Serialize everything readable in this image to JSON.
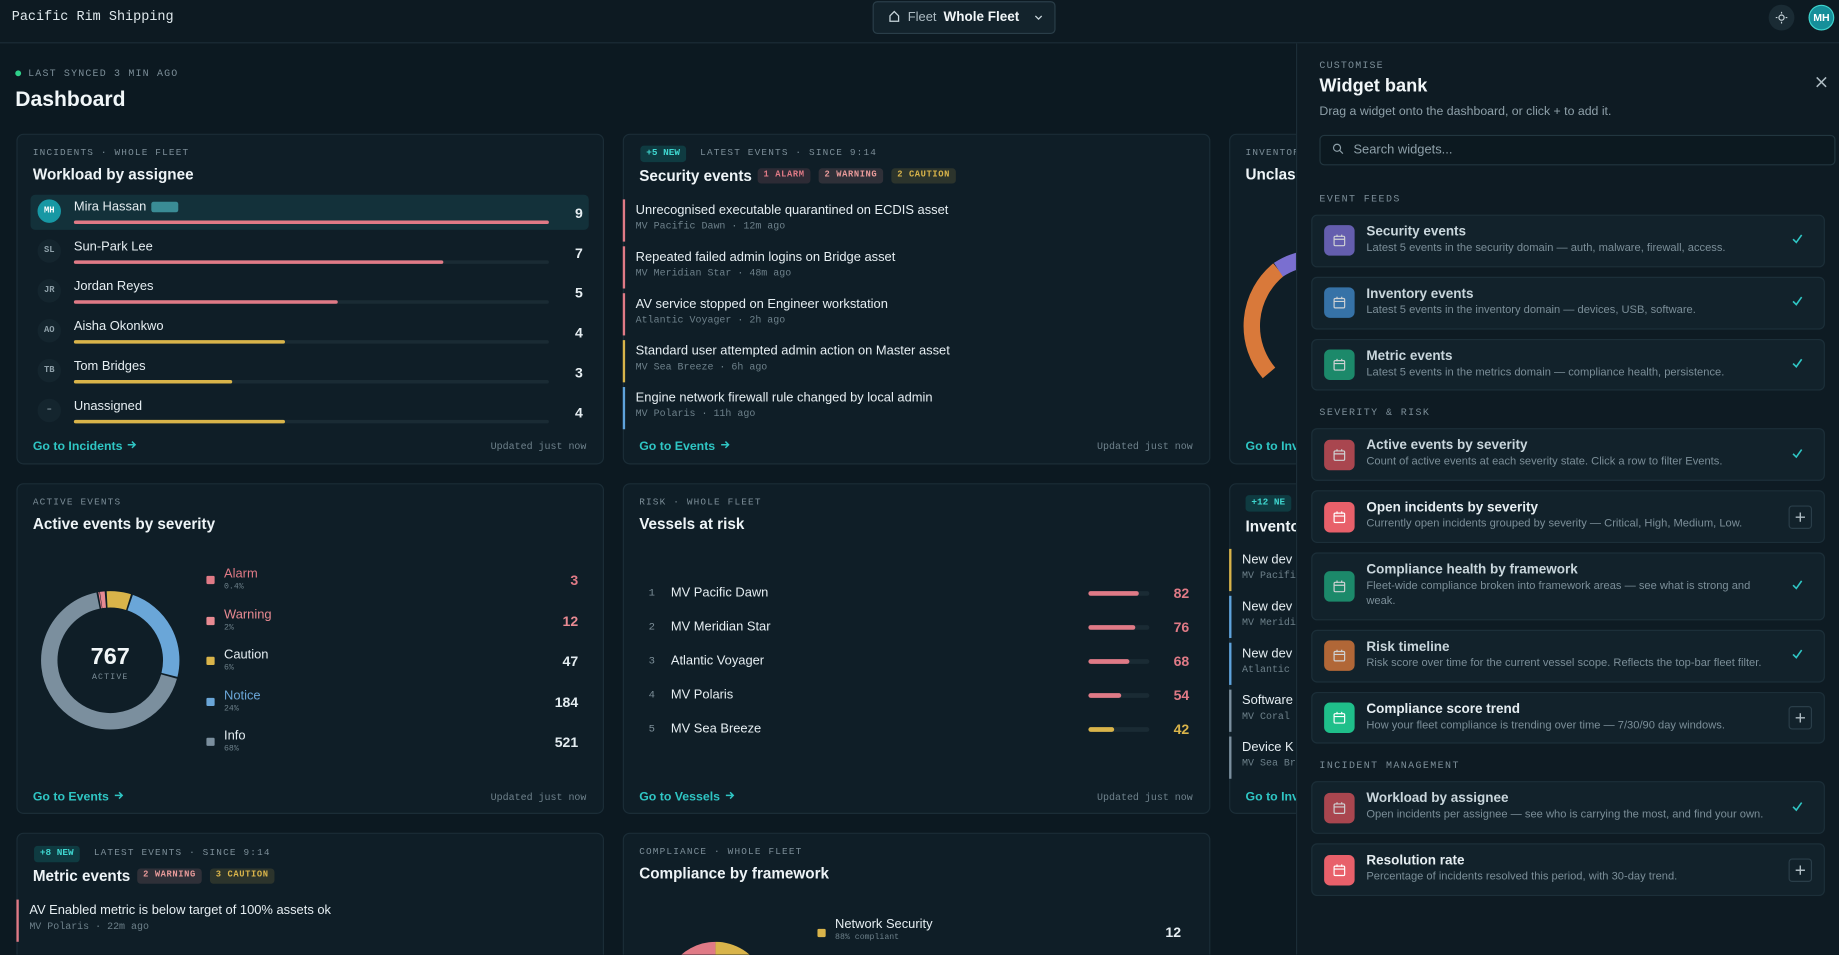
{
  "topbar": {
    "brand": "Pacific Rim Shipping",
    "fleet_label": "Fleet",
    "fleet_value": "Whole Fleet",
    "avatar": "MH"
  },
  "header": {
    "sync": "LAST SYNCED 3 MIN AGO",
    "title": "Dashboard"
  },
  "workload": {
    "eyebrow": "INCIDENTS · WHOLE FLEET",
    "title": "Workload by assignee",
    "rows": [
      {
        "initials": "MH",
        "name": "Mira Hassan",
        "count": 9,
        "color": "#e07a86"
      },
      {
        "initials": "SL",
        "name": "Sun-Park Lee",
        "count": 7,
        "color": "#e07a86"
      },
      {
        "initials": "JR",
        "name": "Jordan Reyes",
        "count": 5,
        "color": "#e07a86"
      },
      {
        "initials": "AO",
        "name": "Aisha Okonkwo",
        "count": 4,
        "color": "#d9b44a"
      },
      {
        "initials": "TB",
        "name": "Tom Bridges",
        "count": 3,
        "color": "#d9b44a"
      },
      {
        "initials": "–",
        "name": "Unassigned",
        "count": 4,
        "color": "#d9b44a"
      }
    ],
    "link": "Go to Incidents",
    "updated": "Updated just now"
  },
  "security": {
    "badge": "+5 NEW",
    "eyebrow": "LATEST EVENTS · SINCE 9:14",
    "title": "Security events",
    "tags": [
      {
        "text": "1 ALARM",
        "color": "#e07a86"
      },
      {
        "text": "2 WARNING",
        "color": "#e89a9a"
      },
      {
        "text": "2 CAUTION",
        "color": "#d9b44a"
      }
    ],
    "events": [
      {
        "title": "Unrecognised executable quarantined on ECDIS asset",
        "meta": "MV Pacific Dawn · 12m ago",
        "color": "#e07a86"
      },
      {
        "title": "Repeated failed admin logins on Bridge asset",
        "meta": "MV Meridian Star · 48m ago",
        "color": "#e07a86"
      },
      {
        "title": "AV service stopped on Engineer workstation",
        "meta": "Atlantic Voyager · 2h ago",
        "color": "#e07a86"
      },
      {
        "title": "Standard user attempted admin action on Master asset",
        "meta": "MV Sea Breeze · 6h ago",
        "color": "#d9b44a"
      },
      {
        "title": "Engine network firewall rule changed by local admin",
        "meta": "MV Polaris · 11h ago",
        "color": "#5fa3dc"
      }
    ],
    "link": "Go to Events",
    "updated": "Updated just now"
  },
  "inventory_peek": {
    "eyebrow": "INVENTOR",
    "title": "Unclass",
    "link": "Go to Inv"
  },
  "severity": {
    "eyebrow": "ACTIVE EVENTS",
    "title": "Active events by severity",
    "total": 767,
    "total_label": "ACTIVE",
    "items": [
      {
        "name": "Alarm",
        "share": "0.4%",
        "value": 3,
        "color": "#e07a86",
        "text_color": "#e07a86"
      },
      {
        "name": "Warning",
        "share": "2%",
        "value": 12,
        "color": "#e88a92",
        "text_color": "#e88a92"
      },
      {
        "name": "Caution",
        "share": "6%",
        "value": 47,
        "color": "#d9b44a",
        "text_color": "#e3ecf0"
      },
      {
        "name": "Notice",
        "share": "24%",
        "value": 184,
        "color": "#6aa6d8",
        "text_color": "#6aa6d8"
      },
      {
        "name": "Info",
        "share": "68%",
        "value": 521,
        "color": "#7b8f9e",
        "text_color": "#e3ecf0"
      }
    ],
    "link": "Go to Events",
    "updated": "Updated just now"
  },
  "vessels": {
    "eyebrow": "RISK · WHOLE FLEET",
    "title": "Vessels at risk",
    "xlim": [
      0,
      100
    ],
    "rows": [
      {
        "rank": 1,
        "name": "MV Pacific Dawn",
        "score": 82,
        "color": "#e07a86"
      },
      {
        "rank": 2,
        "name": "MV Meridian Star",
        "score": 76,
        "color": "#e07a86"
      },
      {
        "rank": 3,
        "name": "Atlantic Voyager",
        "score": 68,
        "color": "#e07a86"
      },
      {
        "rank": 4,
        "name": "MV Polaris",
        "score": 54,
        "color": "#e07a86"
      },
      {
        "rank": 5,
        "name": "MV Sea Breeze",
        "score": 42,
        "color": "#d9b44a"
      }
    ],
    "link": "Go to Vessels",
    "updated": "Updated just now"
  },
  "inventory_events_peek": {
    "badge": "+12 NE",
    "title": "Invento",
    "events": [
      {
        "title": "New dev",
        "meta": "MV Pacifi",
        "color": "#d9b44a"
      },
      {
        "title": "New dev",
        "meta": "MV Meridi",
        "color": "#5fa3dc"
      },
      {
        "title": "New dev",
        "meta": "Atlantic",
        "color": "#5fa3dc"
      },
      {
        "title": "Software",
        "meta": "MV Coral",
        "color": "#7b8f9e"
      },
      {
        "title": "Device K",
        "meta": "MV Sea Br",
        "color": "#7b8f9e"
      }
    ],
    "link": "Go to Inv"
  },
  "metric": {
    "badge": "+8 NEW",
    "eyebrow": "LATEST EVENTS · SINCE 9:14",
    "title": "Metric events",
    "tags": [
      {
        "text": "2 WARNING",
        "color": "#e89a9a"
      },
      {
        "text": "3 CAUTION",
        "color": "#d9b44a"
      }
    ],
    "events": [
      {
        "title": "AV Enabled metric is below target of 100% assets ok",
        "meta": "MV Polaris · 22m ago",
        "color": "#e07a86"
      }
    ]
  },
  "compliance": {
    "eyebrow": "COMPLIANCE · WHOLE FLEET",
    "title": "Compliance by framework",
    "items": [
      {
        "name": "Network Security",
        "share": "88% compliant",
        "value": 12,
        "color": "#d9b44a"
      }
    ]
  },
  "widget_bank": {
    "eyebrow": "CUSTOMISE",
    "title": "Widget bank",
    "hint": "Drag a widget onto the dashboard, or click + to add it.",
    "search": "Search widgets...",
    "sections": [
      {
        "title": "EVENT FEEDS",
        "items": [
          {
            "name": "Security events",
            "description": "Latest 5 events in the security domain — auth, malware, firewall, access.",
            "color": "#7a6fd0",
            "added": true
          },
          {
            "name": "Inventory events",
            "description": "Latest 5 events in the inventory domain — devices, USB, software.",
            "color": "#3f86c7",
            "added": true
          },
          {
            "name": "Metric events",
            "description": "Latest 5 events in the metrics domain — compliance health, persistence.",
            "color": "#1fa37a",
            "added": true
          }
        ]
      },
      {
        "title": "SEVERITY & RISK",
        "items": [
          {
            "name": "Active events by severity",
            "description": "Count of active events at each severity state. Click a row to filter Events.",
            "color": "#cf4f58",
            "added": true
          },
          {
            "name": "Open incidents by severity",
            "description": "Currently open incidents grouped by severity — Critical, High, Medium, Low.",
            "color": "#e8606a",
            "added": false
          },
          {
            "name": "Compliance health by framework",
            "description": "Fleet-wide compliance broken into framework areas — see what is strong and weak.",
            "color": "#1fa37a",
            "added": true
          },
          {
            "name": "Risk timeline",
            "description": "Risk score over time for the current vessel scope. Reflects the top-bar fleet filter.",
            "color": "#d9793a",
            "added": true
          },
          {
            "name": "Compliance score trend",
            "description": "How your fleet compliance is trending over time — 7/30/90 day windows.",
            "color": "#1fbf8a",
            "added": false
          }
        ]
      },
      {
        "title": "INCIDENT MANAGEMENT",
        "items": [
          {
            "name": "Workload by assignee",
            "description": "Open incidents per assignee — see who is carrying the most, and find your own.",
            "color": "#cf4f58",
            "added": true
          },
          {
            "name": "Resolution rate",
            "description": "Percentage of incidents resolved this period, with 30-day trend.",
            "color": "#e8606a",
            "added": false
          }
        ]
      }
    ]
  }
}
